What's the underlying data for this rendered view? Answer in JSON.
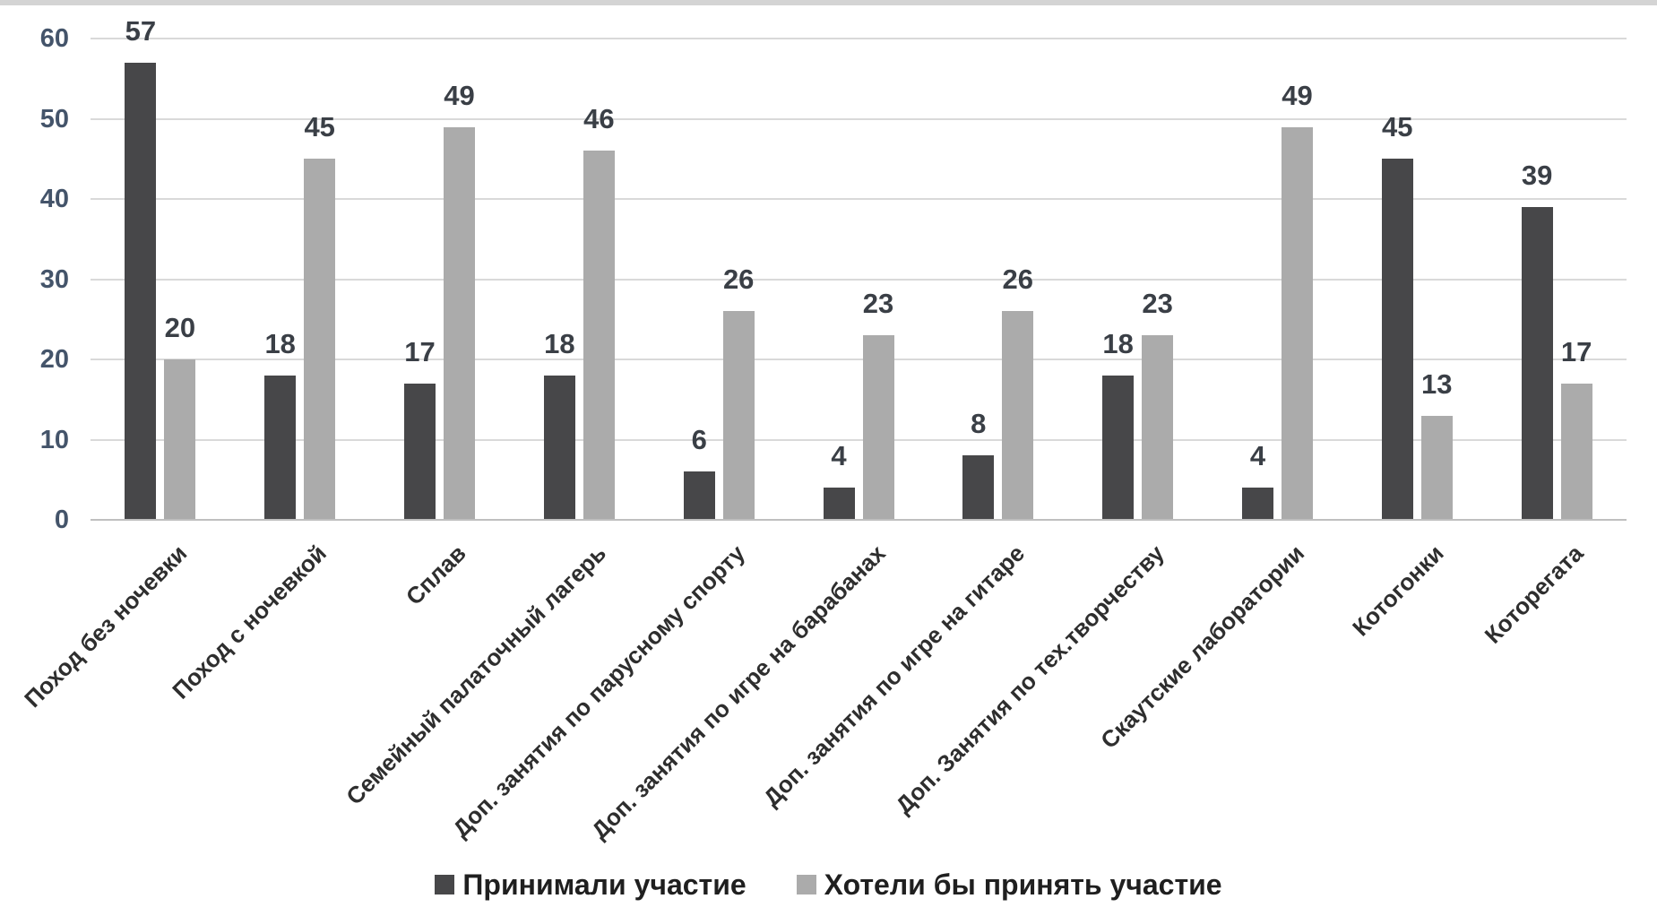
{
  "chart_data": {
    "type": "bar",
    "title": "",
    "xlabel": "",
    "ylabel": "",
    "categories": [
      "Поход без ночевки",
      "Поход с ночевкой",
      "Сплав",
      "Семейный палаточный лагерь",
      "Доп. занятия по парусному спорту",
      "Доп. занятия по игре на барабанах",
      "Доп. занятия по игре на гитаре",
      "Доп. Занятия по тех.творчеству",
      "Скаутские лаборатории",
      "Котогонки",
      "Которегата"
    ],
    "series": [
      {
        "name": "Принимали участие",
        "color": "#474749",
        "values": [
          57,
          18,
          17,
          18,
          6,
          4,
          8,
          18,
          4,
          45,
          39
        ]
      },
      {
        "name": "Хотели бы принять участие",
        "color": "#ababab",
        "values": [
          20,
          45,
          49,
          46,
          26,
          23,
          26,
          23,
          49,
          13,
          17
        ]
      }
    ],
    "ylim": [
      0,
      60
    ],
    "yticks": [
      0,
      10,
      20,
      30,
      40,
      50,
      60
    ],
    "grid": "horizontal",
    "legend_position": "bottom",
    "value_labels": "outside-end",
    "category_label_rotation_deg": -45
  },
  "style": {
    "background": "#ffffff",
    "top_rule_color": "#d4d4d4",
    "grid_color": "#d9d9d9",
    "axis_line_color": "#bfbfbf",
    "tick_label_color": "#44546a",
    "value_label_color": "#3a3f46",
    "category_label_color": "#2e2e2e",
    "legend_text_color": "#1f1f1f"
  }
}
